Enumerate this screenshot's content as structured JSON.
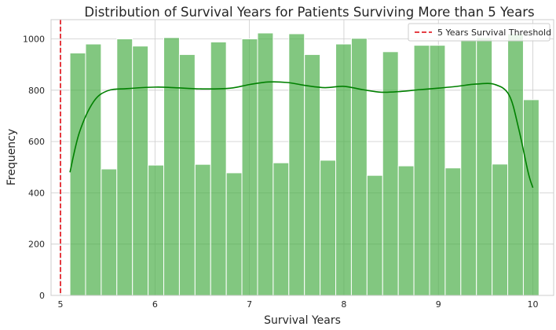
{
  "chart_data": {
    "type": "bar",
    "title": "Distribution of Survival Years for Patients Surviving More than 5 Years",
    "xlabel": "Survival Years",
    "ylabel": "Frequency",
    "xlim": [
      4.9,
      10.22
    ],
    "ylim": [
      0,
      1075
    ],
    "x_ticks": [
      5,
      6,
      7,
      8,
      9,
      10
    ],
    "y_ticks": [
      0,
      200,
      400,
      600,
      800,
      1000
    ],
    "grid": true,
    "legend_position": "top-right",
    "bins": {
      "edges": [
        5.1,
        5.2655,
        5.431,
        5.5965,
        5.762,
        5.9275,
        6.093,
        6.2585,
        6.424,
        6.5895,
        6.755,
        6.9205,
        7.086,
        7.2515,
        7.417,
        7.5825,
        7.748,
        7.9135,
        8.079,
        8.2445,
        8.41,
        8.5755,
        8.741,
        8.9065,
        9.072,
        9.2375,
        9.403,
        9.5685,
        9.734,
        9.8995,
        10.065
      ],
      "values": [
        945,
        980,
        493,
        1000,
        972,
        508,
        1005,
        939,
        511,
        988,
        478,
        1000,
        1023,
        517,
        1020,
        939,
        527,
        980,
        1002,
        468,
        950,
        505,
        975,
        975,
        497,
        997,
        1005,
        512,
        1020,
        763
      ],
      "color": "#4daf4a"
    },
    "kde": {
      "x": [
        5.1,
        5.2,
        5.35,
        5.5,
        5.7,
        6.0,
        6.2,
        6.5,
        6.8,
        7.0,
        7.2,
        7.4,
        7.6,
        7.8,
        8.0,
        8.2,
        8.4,
        8.6,
        8.8,
        9.0,
        9.2,
        9.4,
        9.6,
        9.75,
        9.85,
        9.95,
        10.0
      ],
      "y": [
        480,
        635,
        755,
        798,
        806,
        812,
        810,
        805,
        808,
        822,
        832,
        830,
        818,
        810,
        815,
        802,
        792,
        795,
        802,
        808,
        815,
        824,
        822,
        780,
        650,
        480,
        420
      ],
      "color": "#008000"
    },
    "threshold": {
      "x": 5,
      "label": "5 Years Survival Threshold",
      "color": "#e3242b"
    }
  }
}
